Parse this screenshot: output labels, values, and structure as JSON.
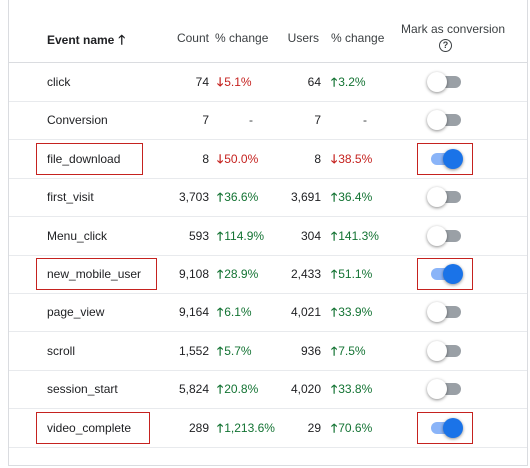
{
  "header": {
    "event_name": "Event name",
    "sort_arrow": "🡑",
    "count": "Count",
    "pct_change_1": "% change",
    "users": "Users",
    "pct_change_2": "% change",
    "mark_as_conversion": "Mark as conversion",
    "help_glyph": "?"
  },
  "colors": {
    "up": "#137333",
    "down": "#c5221f",
    "toggle_on": "#1a73e8",
    "highlight": "#c5221f"
  },
  "rows": [
    {
      "name": "click",
      "count": "74",
      "pct1": "5.1%",
      "pct1_dir": "down",
      "users": "64",
      "pct2": "3.2%",
      "pct2_dir": "up",
      "conversion": false
    },
    {
      "name": "Conversion",
      "count": "7",
      "pct1": "-",
      "pct1_dir": "none",
      "users": "7",
      "pct2": "-",
      "pct2_dir": "none",
      "conversion": false
    },
    {
      "name": "file_download",
      "count": "8",
      "pct1": "50.0%",
      "pct1_dir": "down",
      "users": "8",
      "pct2": "38.5%",
      "pct2_dir": "down",
      "conversion": true,
      "highlighted": true
    },
    {
      "name": "first_visit",
      "count": "3,703",
      "pct1": "36.6%",
      "pct1_dir": "up",
      "users": "3,691",
      "pct2": "36.4%",
      "pct2_dir": "up",
      "conversion": false
    },
    {
      "name": "Menu_click",
      "count": "593",
      "pct1": "114.9%",
      "pct1_dir": "up",
      "users": "304",
      "pct2": "141.3%",
      "pct2_dir": "up",
      "conversion": false
    },
    {
      "name": "new_mobile_user",
      "count": "9,108",
      "pct1": "28.9%",
      "pct1_dir": "up",
      "users": "2,433",
      "pct2": "51.1%",
      "pct2_dir": "up",
      "conversion": true,
      "highlighted": true
    },
    {
      "name": "page_view",
      "count": "9,164",
      "pct1": "6.1%",
      "pct1_dir": "up",
      "users": "4,021",
      "pct2": "33.9%",
      "pct2_dir": "up",
      "conversion": false
    },
    {
      "name": "scroll",
      "count": "1,552",
      "pct1": "5.7%",
      "pct1_dir": "up",
      "users": "936",
      "pct2": "7.5%",
      "pct2_dir": "up",
      "conversion": false
    },
    {
      "name": "session_start",
      "count": "5,824",
      "pct1": "20.8%",
      "pct1_dir": "up",
      "users": "4,020",
      "pct2": "33.8%",
      "pct2_dir": "up",
      "conversion": false
    },
    {
      "name": "video_complete",
      "count": "289",
      "pct1": "1,213.6%",
      "pct1_dir": "up",
      "users": "29",
      "pct2": "70.6%",
      "pct2_dir": "up",
      "conversion": true,
      "highlighted": true
    }
  ]
}
